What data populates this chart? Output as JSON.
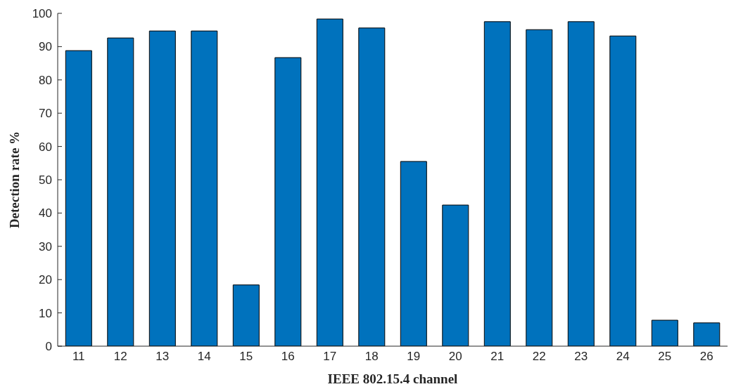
{
  "chart_data": {
    "type": "bar",
    "xlabel": "IEEE 802.15.4 channel",
    "ylabel": "Detection rate %",
    "categories": [
      "11",
      "12",
      "13",
      "14",
      "15",
      "16",
      "17",
      "18",
      "19",
      "20",
      "21",
      "22",
      "23",
      "24",
      "25",
      "26"
    ],
    "values": [
      88.8,
      92.6,
      94.7,
      94.7,
      18.4,
      86.7,
      98.3,
      95.6,
      55.5,
      42.4,
      97.5,
      95.1,
      97.5,
      93.2,
      7.8,
      7.0
    ],
    "color": "#0072bd",
    "ylim": [
      0,
      100
    ],
    "yticks": [
      0,
      10,
      20,
      30,
      40,
      50,
      60,
      70,
      80,
      90,
      100
    ],
    "grid": false,
    "legend": false
  }
}
